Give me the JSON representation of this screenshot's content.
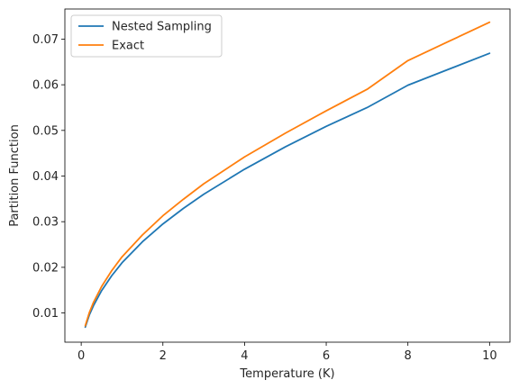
{
  "chart_data": {
    "type": "line",
    "title": "",
    "xlabel": "Temperature (K)",
    "ylabel": "Partition Function",
    "xlim": [
      -0.4,
      10.5
    ],
    "ylim": [
      0.0036,
      0.0766
    ],
    "grid": false,
    "legend_position": "upper-left",
    "x_ticks": [
      0,
      2,
      4,
      6,
      8,
      10
    ],
    "x_tick_labels": [
      "0",
      "2",
      "4",
      "6",
      "8",
      "10"
    ],
    "y_ticks": [
      0.01,
      0.02,
      0.03,
      0.04,
      0.05,
      0.06,
      0.07
    ],
    "y_tick_labels": [
      "0.01",
      "0.02",
      "0.03",
      "0.04",
      "0.05",
      "0.06",
      "0.07"
    ],
    "x": [
      0.1,
      0.2,
      0.3,
      0.5,
      0.75,
      1.0,
      1.5,
      2.0,
      2.5,
      3.0,
      4.0,
      5.0,
      6.0,
      7.0,
      8.0,
      9.0,
      10.0
    ],
    "series": [
      {
        "name": "Nested Sampling",
        "color": "#1f77b4",
        "values": [
          0.0069,
          0.0096,
          0.0116,
          0.0149,
          0.0182,
          0.021,
          0.0256,
          0.0295,
          0.0329,
          0.036,
          0.0415,
          0.0464,
          0.0509,
          0.055,
          0.0599,
          0.0634,
          0.0669
        ]
      },
      {
        "name": "Exact",
        "color": "#ff7f0e",
        "values": [
          0.0072,
          0.0101,
          0.0123,
          0.0158,
          0.0193,
          0.0223,
          0.0271,
          0.0313,
          0.0349,
          0.0383,
          0.0442,
          0.0494,
          0.0543,
          0.059,
          0.0653,
          0.0695,
          0.0737
        ]
      }
    ]
  }
}
